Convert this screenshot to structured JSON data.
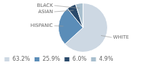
{
  "chart_data": {
    "type": "pie",
    "categories": [
      "WHITE",
      "HISPANIC",
      "ASIAN",
      "BLACK"
    ],
    "values": [
      63.2,
      25.9,
      6.0,
      4.9
    ],
    "value_labels": [
      "63.2%",
      "25.9%",
      "6.0%",
      "4.9%"
    ],
    "colors": [
      "#cdd8e3",
      "#5b8db8",
      "#2a4a6b",
      "#a8bfce"
    ],
    "legend": "lower left"
  }
}
